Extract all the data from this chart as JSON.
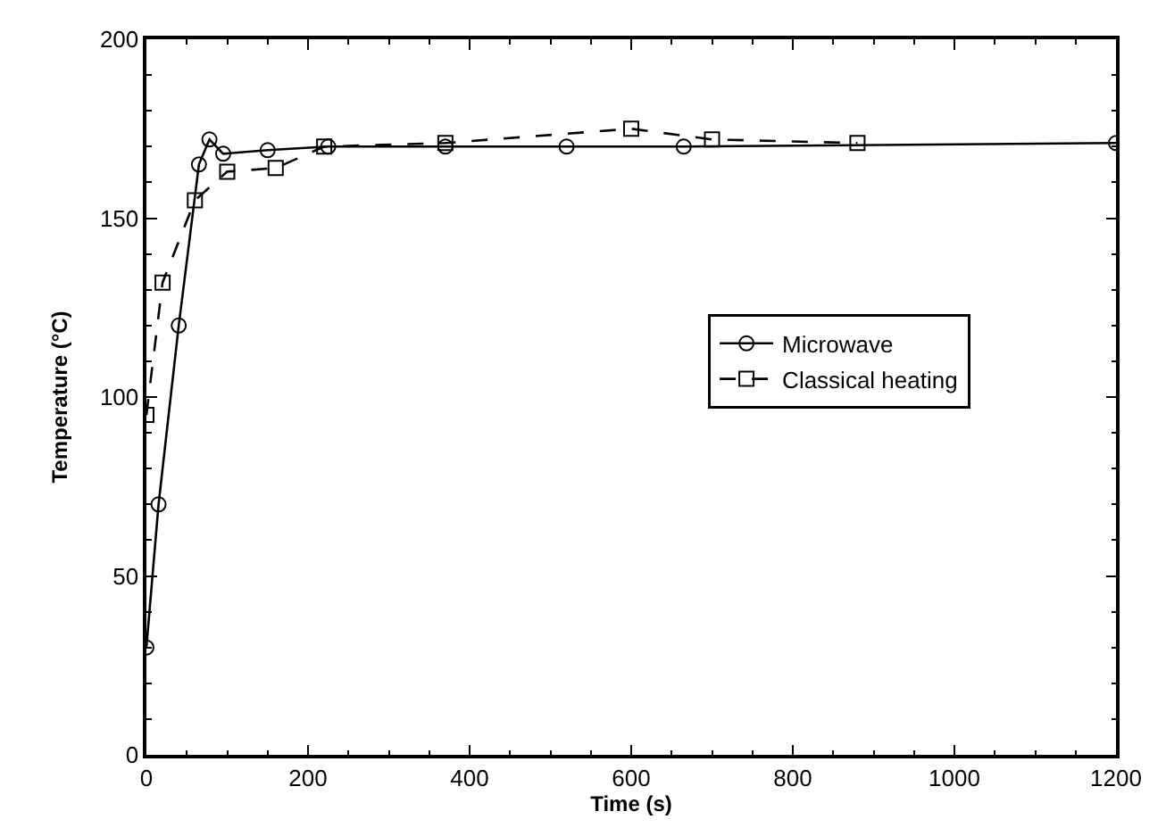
{
  "chart_data": {
    "type": "line",
    "xlabel": "Time (s)",
    "ylabel": "Temperature (°C)",
    "xlim": [
      0,
      1200
    ],
    "xticks": [
      0,
      200,
      400,
      600,
      800,
      1000,
      1200
    ],
    "ylim": [
      0,
      200
    ],
    "yticks": [
      0,
      50,
      100,
      150,
      200
    ],
    "legend": "right",
    "series": [
      {
        "name": "Microwave",
        "color": "#000000",
        "line_style": "solid",
        "marker": "circle",
        "x": [
          0,
          15,
          40,
          65,
          78,
          95,
          150,
          225,
          370,
          520,
          665,
          1200
        ],
        "values": [
          30,
          70,
          120,
          165,
          172,
          168,
          169,
          170,
          170,
          170,
          170,
          171
        ]
      },
      {
        "name": "Classical heating",
        "color": "#000000",
        "line_style": "dashed",
        "marker": "square",
        "x": [
          0,
          20,
          60,
          100,
          160,
          220,
          370,
          600,
          700,
          880
        ],
        "values": [
          95,
          132,
          155,
          163,
          164,
          170,
          171,
          175,
          172,
          171
        ]
      }
    ]
  }
}
